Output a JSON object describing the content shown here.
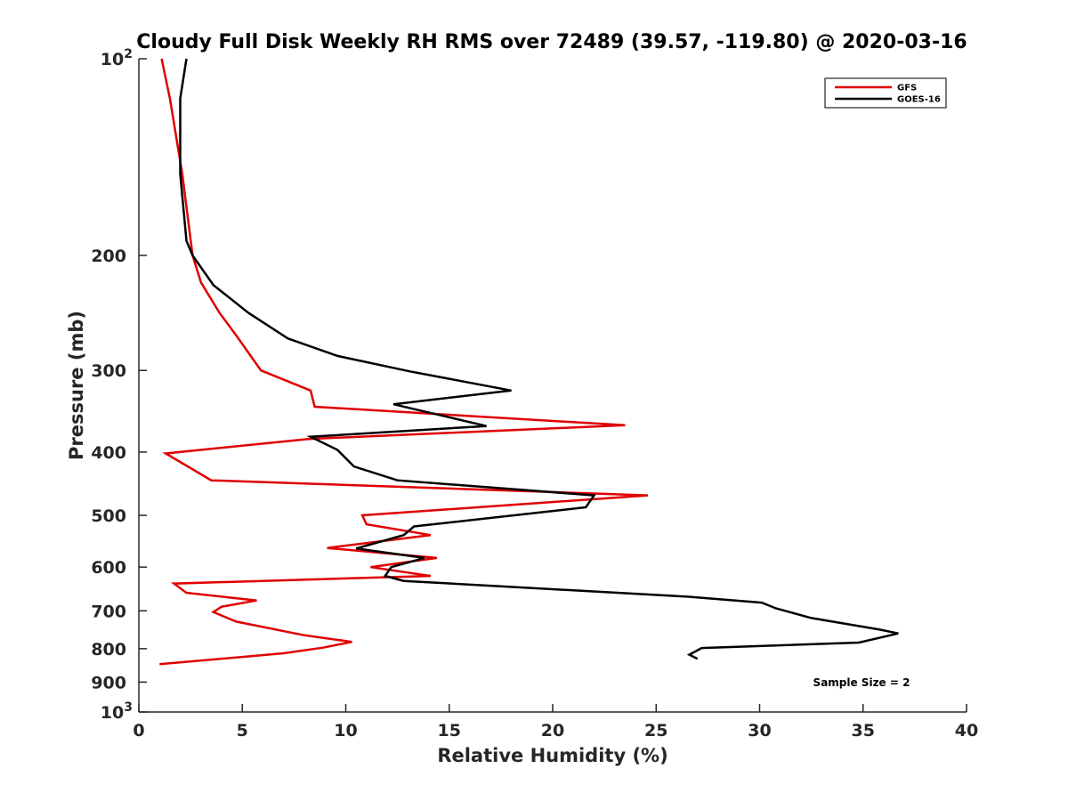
{
  "chart_data": {
    "type": "line",
    "title": "Cloudy Full Disk Weekly RH RMS over 72489 (39.57, -119.80) @ 2020-03-16",
    "xlabel": "Relative Humidity (%)",
    "ylabel": "Pressure (mb)",
    "xlim": [
      0,
      40
    ],
    "ylim": [
      100,
      1000
    ],
    "y_scale": "log",
    "y_reversed": true,
    "grid": false,
    "legend_position": "top-right",
    "annotation": "Sample Size = 2",
    "x_ticks": [
      {
        "value": 0,
        "label": "0"
      },
      {
        "value": 5,
        "label": "5"
      },
      {
        "value": 10,
        "label": "10"
      },
      {
        "value": 15,
        "label": "15"
      },
      {
        "value": 20,
        "label": "20"
      },
      {
        "value": 25,
        "label": "25"
      },
      {
        "value": 30,
        "label": "30"
      },
      {
        "value": 35,
        "label": "35"
      },
      {
        "value": 40,
        "label": "40"
      }
    ],
    "y_ticks": [
      {
        "value": 100,
        "label": "10",
        "sup": "2"
      },
      {
        "value": 200,
        "label": "200"
      },
      {
        "value": 300,
        "label": "300"
      },
      {
        "value": 400,
        "label": "400"
      },
      {
        "value": 500,
        "label": "500"
      },
      {
        "value": 600,
        "label": "600"
      },
      {
        "value": 700,
        "label": "700"
      },
      {
        "value": 800,
        "label": "800"
      },
      {
        "value": 900,
        "label": "900"
      },
      {
        "value": 1000,
        "label": "10",
        "sup": "3"
      }
    ],
    "series": [
      {
        "name": "GFS",
        "color": "#e00000",
        "points": [
          [
            1.1,
            100
          ],
          [
            1.5,
            115
          ],
          [
            2.1,
            150
          ],
          [
            2.6,
            200
          ],
          [
            3.0,
            220
          ],
          [
            3.9,
            245
          ],
          [
            4.7,
            265
          ],
          [
            5.9,
            300
          ],
          [
            8.3,
            322
          ],
          [
            8.5,
            341
          ],
          [
            23.5,
            364
          ],
          [
            8.2,
            382
          ],
          [
            1.3,
            402
          ],
          [
            3.5,
            442
          ],
          [
            24.6,
            466
          ],
          [
            10.8,
            500
          ],
          [
            11.0,
            516
          ],
          [
            14.1,
            536
          ],
          [
            9.1,
            561
          ],
          [
            14.4,
            581
          ],
          [
            11.2,
            600
          ],
          [
            14.1,
            619
          ],
          [
            1.7,
            636
          ],
          [
            2.3,
            657
          ],
          [
            5.7,
            675
          ],
          [
            4.0,
            690
          ],
          [
            3.6,
            703
          ],
          [
            4.7,
            727
          ],
          [
            8.0,
            763
          ],
          [
            10.3,
            781
          ],
          [
            8.9,
            797
          ],
          [
            7.0,
            813
          ],
          [
            1.0,
            845
          ]
        ]
      },
      {
        "name": "GOES-16",
        "color": "#000000",
        "points": [
          [
            2.3,
            100
          ],
          [
            2.0,
            115
          ],
          [
            2.0,
            150
          ],
          [
            2.3,
            190
          ],
          [
            2.6,
            200
          ],
          [
            3.6,
            222
          ],
          [
            5.3,
            245
          ],
          [
            7.2,
            268
          ],
          [
            9.6,
            285
          ],
          [
            13.1,
            301
          ],
          [
            18.0,
            322
          ],
          [
            12.3,
            338
          ],
          [
            16.8,
            365
          ],
          [
            8.3,
            379
          ],
          [
            9.6,
            397
          ],
          [
            10.4,
            421
          ],
          [
            12.5,
            442
          ],
          [
            22.0,
            466
          ],
          [
            21.6,
            486
          ],
          [
            13.3,
            520
          ],
          [
            12.8,
            536
          ],
          [
            10.5,
            562
          ],
          [
            13.8,
            581
          ],
          [
            12.2,
            600
          ],
          [
            11.9,
            619
          ],
          [
            12.8,
            630
          ],
          [
            26.5,
            666
          ],
          [
            30.1,
            680
          ],
          [
            30.8,
            694
          ],
          [
            32.5,
            718
          ],
          [
            35.8,
            748
          ],
          [
            36.7,
            758
          ],
          [
            34.8,
            783
          ],
          [
            27.2,
            798
          ],
          [
            26.6,
            817
          ],
          [
            27.0,
            829
          ]
        ]
      }
    ]
  }
}
